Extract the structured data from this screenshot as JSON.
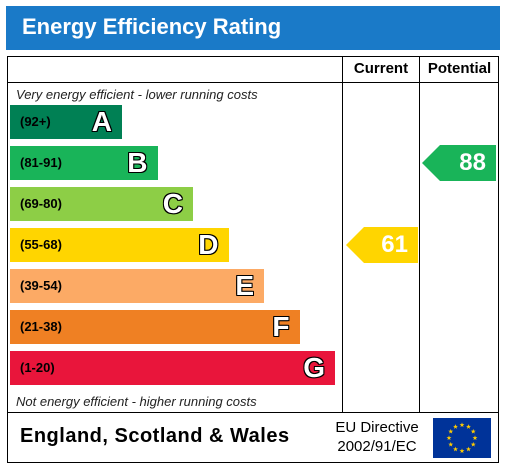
{
  "title": "Energy Efficiency Rating",
  "columns": {
    "current": "Current",
    "potential": "Potential"
  },
  "notes": {
    "top": "Very energy efficient - lower running costs",
    "bottom": "Not energy efficient - higher running costs"
  },
  "footer": {
    "region": "England, Scotland & Wales",
    "directive_line1": "EU Directive",
    "directive_line2": "2002/91/EC",
    "flag_icon": "eu-flag-icon"
  },
  "chart_data": {
    "type": "bar",
    "categories": [
      "A",
      "B",
      "C",
      "D",
      "E",
      "F",
      "G"
    ],
    "bands": [
      {
        "letter": "A",
        "range": "(92+)",
        "color": "#008054"
      },
      {
        "letter": "B",
        "range": "(81-91)",
        "color": "#19b459"
      },
      {
        "letter": "C",
        "range": "(69-80)",
        "color": "#8dce46"
      },
      {
        "letter": "D",
        "range": "(55-68)",
        "color": "#ffd500"
      },
      {
        "letter": "E",
        "range": "(39-54)",
        "color": "#fcaa65"
      },
      {
        "letter": "F",
        "range": "(21-38)",
        "color": "#ef8023"
      },
      {
        "letter": "G",
        "range": "(1-20)",
        "color": "#e9153b"
      }
    ],
    "current": {
      "value": "61",
      "band": "D",
      "color": "#ffd500"
    },
    "potential": {
      "value": "88",
      "band": "B",
      "color": "#19b459"
    }
  }
}
